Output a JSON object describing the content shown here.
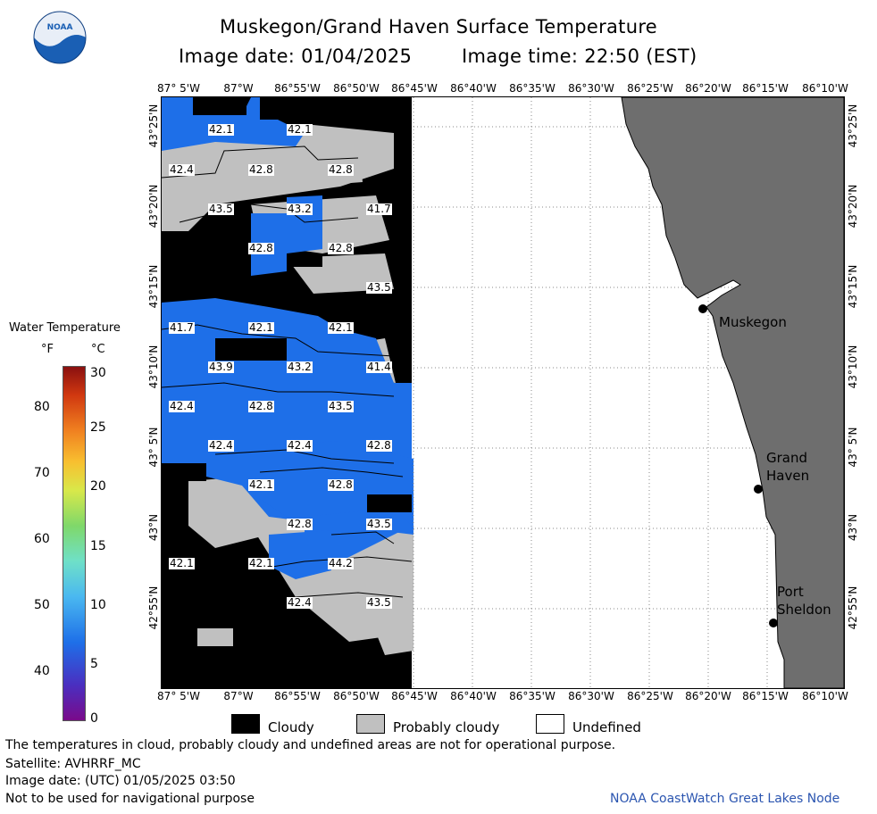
{
  "header": {
    "title": "Muskegon/Grand Haven Surface Temperature",
    "date_text": "Image date: 01/04/2025",
    "time_text": "Image time: 22:50 (EST)"
  },
  "logo": {
    "text": "NOAA"
  },
  "axes": {
    "lon_labels": [
      "87° 5'W",
      "87°W",
      "86°55'W",
      "86°50'W",
      "86°45'W",
      "86°40'W",
      "86°35'W",
      "86°30'W",
      "86°25'W",
      "86°20'W",
      "86°15'W",
      "86°10'W"
    ],
    "lat_labels": [
      "43°25'N",
      "43°20'N",
      "43°15'N",
      "43°10'N",
      "43° 5'N",
      "43°N",
      "42°55'N"
    ]
  },
  "temperature_labels": [
    {
      "text": "42.1"
    },
    {
      "text": "42.1"
    },
    {
      "text": "42.4"
    },
    {
      "text": "42.8"
    },
    {
      "text": "42.8"
    },
    {
      "text": "43.5"
    },
    {
      "text": "43.2"
    },
    {
      "text": "41.7"
    },
    {
      "text": "42.8"
    },
    {
      "text": "42.8"
    },
    {
      "text": "43.5"
    },
    {
      "text": "41.7"
    },
    {
      "text": "42.1"
    },
    {
      "text": "42.1"
    },
    {
      "text": "43.9"
    },
    {
      "text": "43.2"
    },
    {
      "text": "41.4"
    },
    {
      "text": "42.4"
    },
    {
      "text": "42.8"
    },
    {
      "text": "43.5"
    },
    {
      "text": "42.4"
    },
    {
      "text": "42.4"
    },
    {
      "text": "42.8"
    },
    {
      "text": "42.1"
    },
    {
      "text": "42.8"
    },
    {
      "text": "42.8"
    },
    {
      "text": "43.5"
    },
    {
      "text": "42.1"
    },
    {
      "text": "42.1"
    },
    {
      "text": "44.2"
    },
    {
      "text": "42.4"
    },
    {
      "text": "43.5"
    }
  ],
  "cities": {
    "muskegon": "Muskegon",
    "grand_haven_1": "Grand",
    "grand_haven_2": "Haven",
    "port_sheldon_1": "Port",
    "port_sheldon_2": "Sheldon"
  },
  "colorbar": {
    "title": "Water Temperature",
    "unit_f": "°F",
    "unit_c": "°C",
    "f_ticks": [
      "80",
      "70",
      "60",
      "50",
      "40"
    ],
    "c_ticks": [
      "30",
      "25",
      "20",
      "15",
      "10",
      "5",
      "0"
    ]
  },
  "legend": {
    "cloudy": "Cloudy",
    "probably_cloudy": "Probably cloudy",
    "undefined": "Undefined"
  },
  "colors": {
    "cloudy": "#000000",
    "probably_cloudy": "#c0c0c0",
    "undefined": "#ffffff",
    "land": "#6e6e6e",
    "water_blue": "#1e6fe8",
    "credit": "#2b55b0"
  },
  "footer": {
    "disclaimer": "The temperatures in cloud, probably cloudy and undefined areas are not for operational purpose.",
    "satellite": "Satellite: AVHRRF_MC",
    "utc_date": "Image date: (UTC) 01/05/2025  03:50",
    "nav_warning": "Not to be used for navigational purpose",
    "credit": "NOAA CoastWatch Great Lakes Node"
  }
}
